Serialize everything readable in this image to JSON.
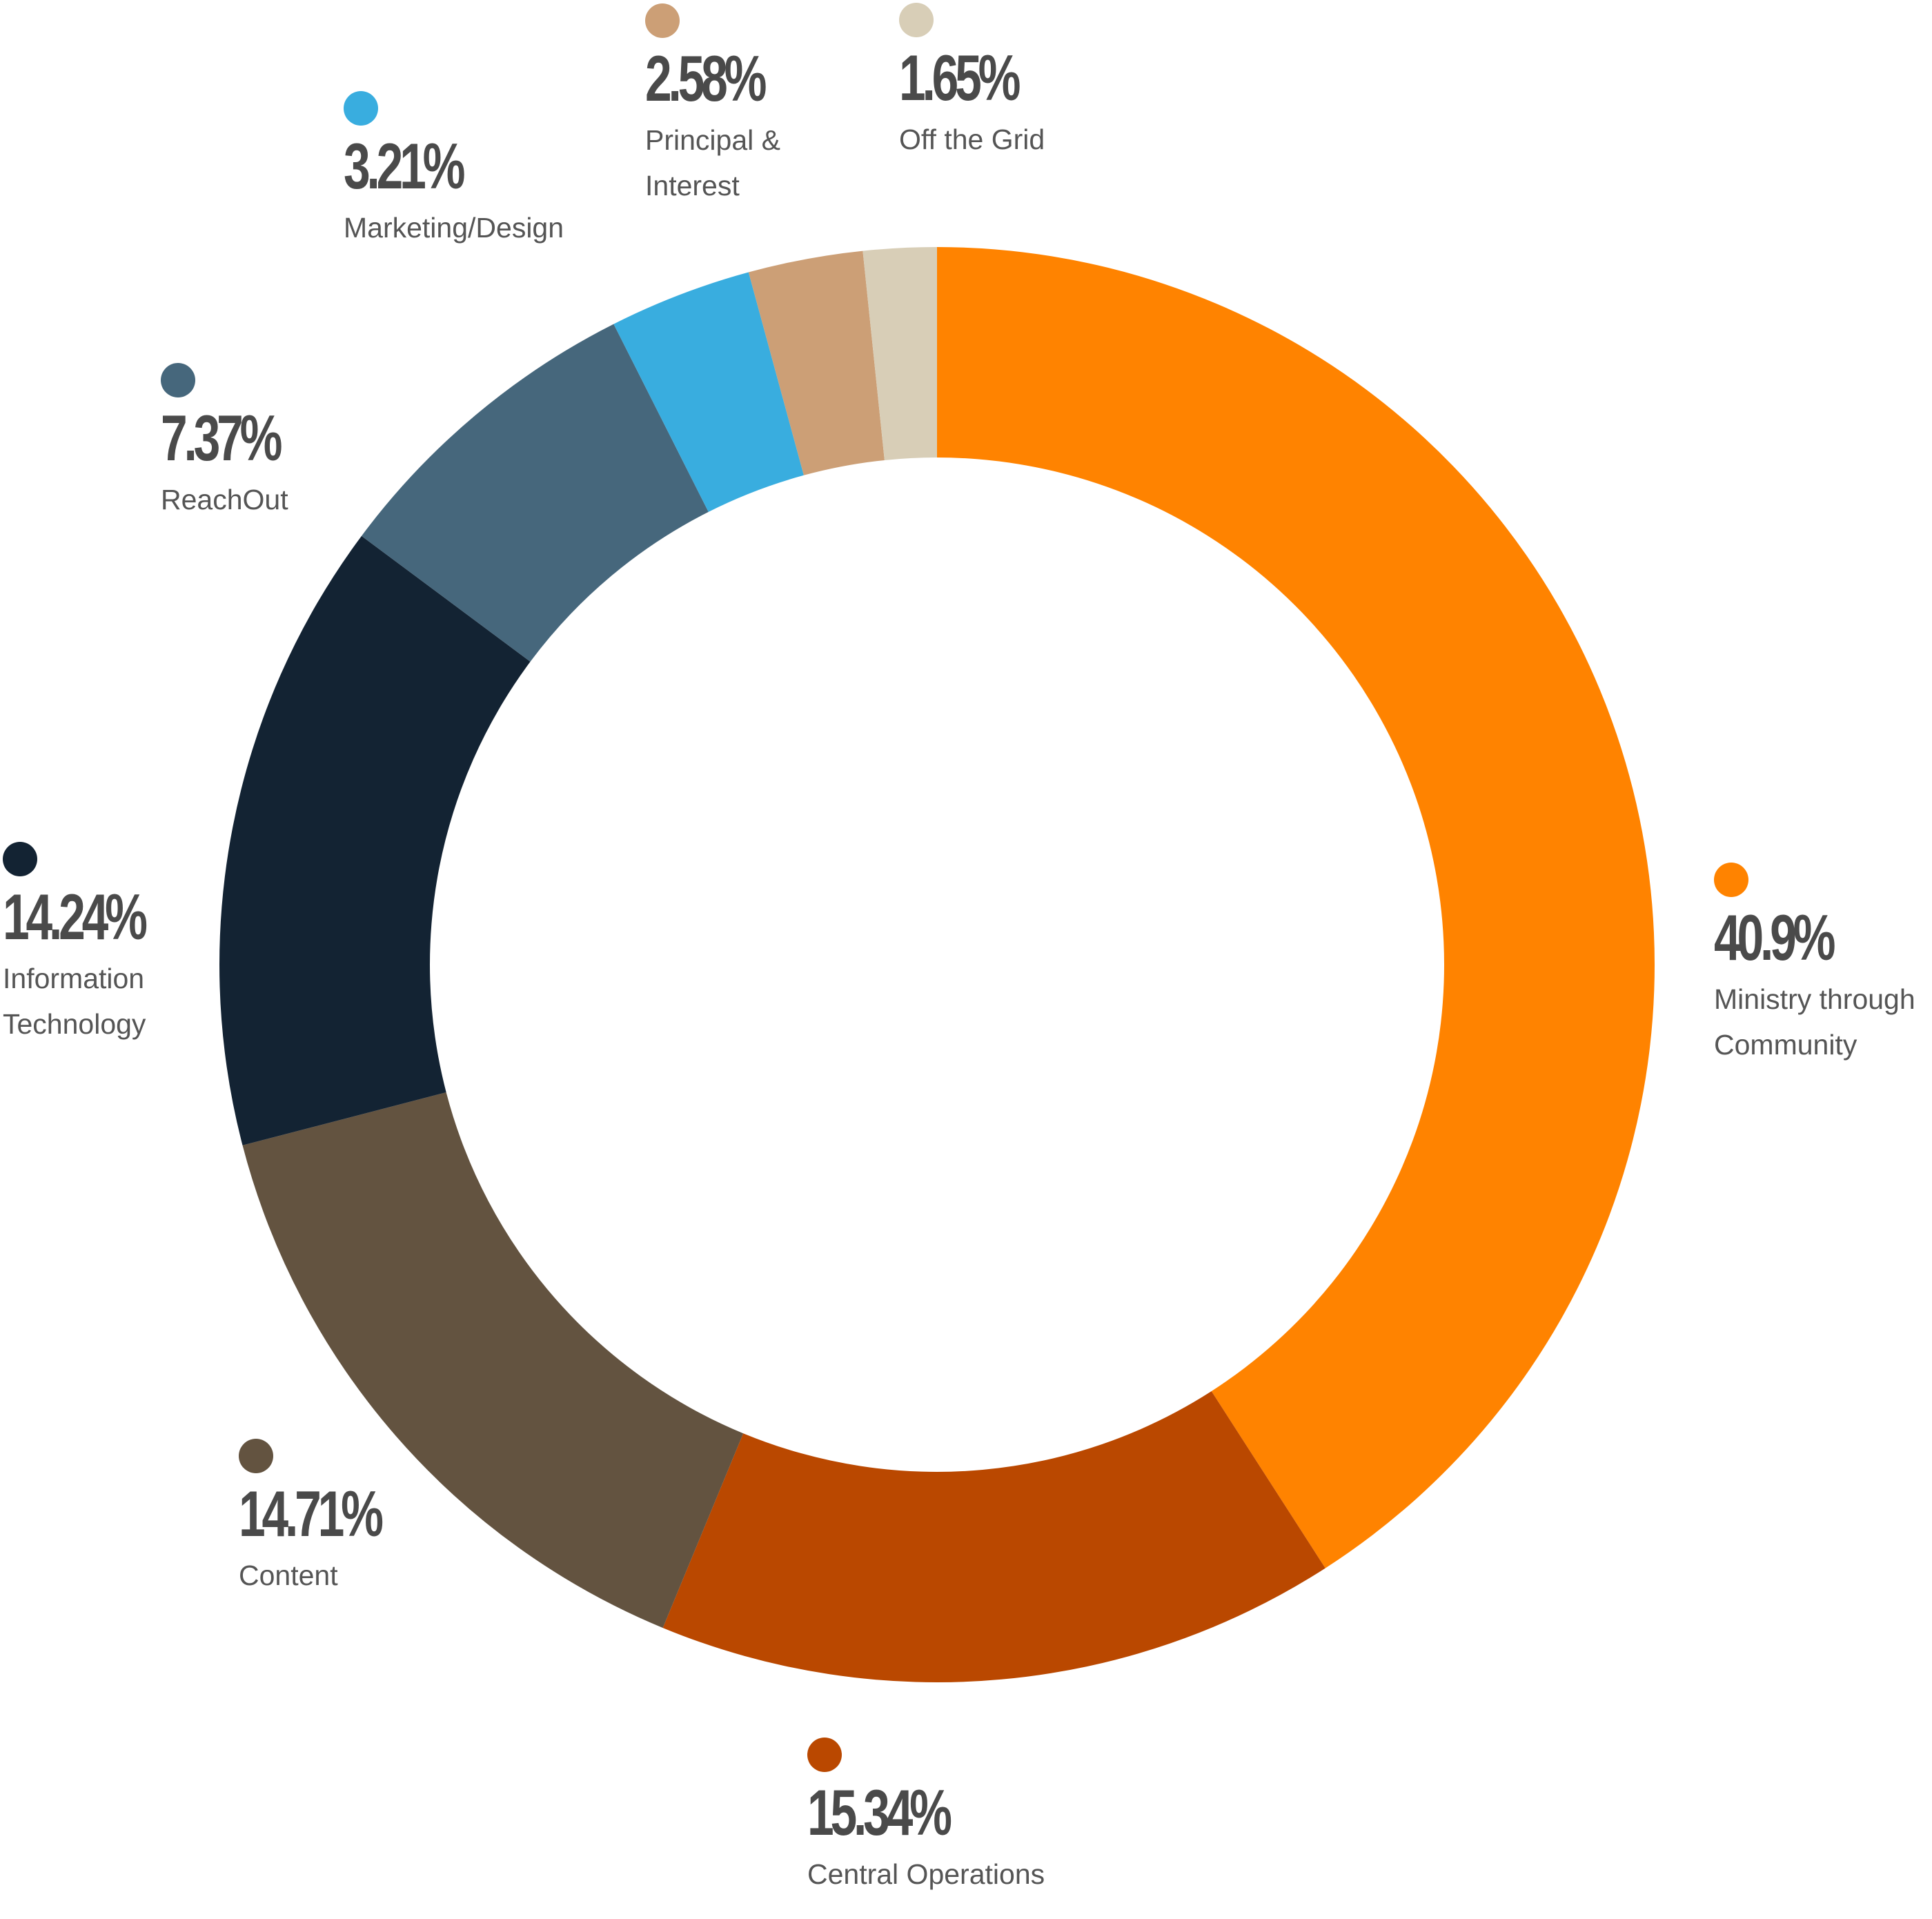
{
  "chart_data": {
    "type": "pie",
    "style": "donut",
    "slices": [
      {
        "label": "Ministry through\nCommunity",
        "percent_label": "40.9%",
        "value": 40.9,
        "color": "#FF8300"
      },
      {
        "label": "Central Operations",
        "percent_label": "15.34%",
        "value": 15.34,
        "color": "#BA4800"
      },
      {
        "label": "Content",
        "percent_label": "14.71%",
        "value": 14.71,
        "color": "#635340"
      },
      {
        "label": "Information\nTechnology",
        "percent_label": "14.24%",
        "value": 14.24,
        "color": "#132333"
      },
      {
        "label": "ReachOut",
        "percent_label": "7.37%",
        "value": 7.37,
        "color": "#46677C"
      },
      {
        "label": "Marketing/Design",
        "percent_label": "3.21%",
        "value": 3.21,
        "color": "#39ADDF"
      },
      {
        "label": "Principal &\nInterest",
        "percent_label": "2.58%",
        "value": 2.58,
        "color": "#CC9F76"
      },
      {
        "label": "Off the Grid",
        "percent_label": "1.65%",
        "value": 1.65,
        "color": "#D8CEB7"
      }
    ],
    "legend_placement": "around",
    "start_angle": "top",
    "direction": "clockwise"
  }
}
